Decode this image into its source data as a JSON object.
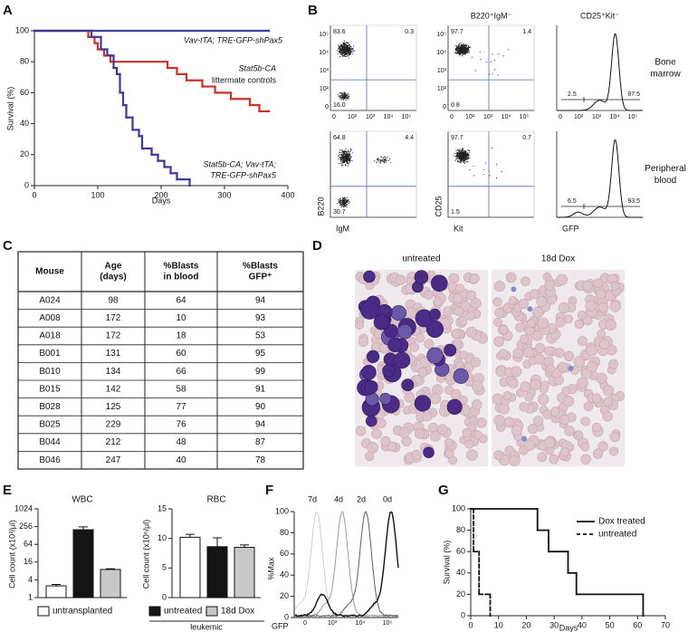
{
  "panel_letters": [
    "A",
    "B",
    "C",
    "D",
    "E",
    "F",
    "G"
  ],
  "chart_data": [
    {
      "type": "step",
      "xlabel": "Days",
      "ylabel": "Survival (%)",
      "xlim": [
        0,
        400
      ],
      "ylim": [
        0,
        100
      ],
      "xticks": [
        0,
        100,
        200,
        300,
        400
      ],
      "yticks": [
        0,
        20,
        40,
        60,
        80,
        100
      ],
      "series": [
        {
          "label_lines": [
            "Vav-tTA; TRE-GFP-shPax5"
          ],
          "color": "#3f3fa0",
          "x": [
            0,
            370
          ],
          "values": [
            100,
            100
          ]
        },
        {
          "label_lines": [
            "Stat5b-CA",
            "littermate controls"
          ],
          "color": "#c8322b",
          "x": [
            0,
            85,
            95,
            100,
            110,
            120,
            210,
            225,
            240,
            265,
            285,
            310,
            340,
            355,
            370
          ],
          "values": [
            100,
            96,
            92,
            88,
            84,
            80,
            76,
            72,
            68,
            64,
            60,
            56,
            52,
            48,
            48
          ]
        },
        {
          "label_lines": [
            "Stat5b-CA; Vav-tTA;",
            "TRE-GFP-shPax5"
          ],
          "color": "#3d3a91",
          "x": [
            0,
            90,
            105,
            115,
            125,
            130,
            135,
            140,
            145,
            155,
            165,
            170,
            185,
            195,
            205,
            215,
            225,
            245
          ],
          "values": [
            100,
            96,
            88,
            84,
            76,
            72,
            60,
            52,
            44,
            36,
            32,
            24,
            20,
            16,
            12,
            8,
            4,
            0
          ]
        }
      ]
    },
    {
      "type": "bar",
      "title": "WBC",
      "ylabel": "Cell count (x10³/μl)",
      "log_scale": true,
      "ylim": [
        1,
        1024
      ],
      "yticks": [
        1,
        4,
        16,
        64,
        256,
        1024
      ],
      "categories": [
        "untransplanted",
        "untreated",
        "18d Dox"
      ],
      "legend_group": "leukemic",
      "colors": [
        "#ffffff",
        "#141414",
        "#c8c8c8"
      ],
      "values": [
        2.5,
        200,
        9
      ],
      "errors": [
        0.3,
        50,
        0.5
      ]
    },
    {
      "type": "bar",
      "title": "RBC",
      "ylabel": "Cell count (x10⁶/μl)",
      "log_scale": false,
      "ylim": [
        0,
        15
      ],
      "yticks": [
        0,
        5,
        10,
        15
      ],
      "colors": [
        "#ffffff",
        "#141414",
        "#c8c8c8"
      ],
      "values": [
        10.2,
        8.6,
        8.5
      ],
      "errors": [
        0.5,
        1.5,
        0.4
      ]
    },
    {
      "type": "histogram-overlay",
      "xlabel": "GFP",
      "ylabel": "%Max",
      "ylim": [
        0,
        100
      ],
      "yticks": [
        0,
        20,
        40,
        60,
        80,
        100
      ],
      "x_tick_labels": [
        "0",
        "10³",
        "10⁴",
        "10⁵"
      ],
      "series": [
        {
          "name": "7d",
          "color": "#cfcfcf"
        },
        {
          "name": "4d",
          "color": "#9a9a9a"
        },
        {
          "name": "2d",
          "color": "#5e5e5e"
        },
        {
          "name": "0d",
          "color": "#111111"
        }
      ]
    },
    {
      "type": "step",
      "xlabel": "Days",
      "ylabel": "Survival (%)",
      "xlim": [
        0,
        70
      ],
      "ylim": [
        0,
        100
      ],
      "xticks": [
        0,
        10,
        20,
        30,
        40,
        50,
        60,
        70
      ],
      "yticks": [
        0,
        20,
        40,
        60,
        80,
        100
      ],
      "series": [
        {
          "name": "Dox treated",
          "color": "#111111",
          "dashed": false,
          "x": [
            0,
            24,
            28,
            35,
            38,
            62
          ],
          "values": [
            100,
            80,
            60,
            40,
            20,
            0
          ]
        },
        {
          "name": "untreated",
          "color": "#111111",
          "dashed": true,
          "x": [
            0,
            1,
            3,
            7
          ],
          "values": [
            100,
            60,
            20,
            0
          ]
        }
      ]
    }
  ],
  "flow_cytometry": {
    "column_headers": [
      "B220⁺IgM⁻",
      "CD25⁺Kit⁻"
    ],
    "log_tick_labels": [
      "0",
      "10²",
      "10³",
      "10⁴",
      "10⁵"
    ],
    "axis_labels": [
      [
        "B220",
        "IgM"
      ],
      [
        "CD25",
        "Kit"
      ],
      [
        "GFP"
      ]
    ],
    "rows": [
      {
        "label_lines": [
          "Bone",
          "marrow"
        ],
        "plots": [
          [
            "83.6",
            "0.3",
            "16.0"
          ],
          [
            "97.7",
            "1.4",
            "0.8"
          ],
          [
            "2.5",
            "97.5"
          ]
        ]
      },
      {
        "label_lines": [
          "Peripheral",
          "blood"
        ],
        "plots": [
          [
            "64.8",
            "4.4",
            "30.7"
          ],
          [
            "97.7",
            "0.7",
            "1.5"
          ],
          [
            "6.5",
            "93.5"
          ]
        ]
      }
    ]
  },
  "table": {
    "header": [
      [
        "Mouse"
      ],
      [
        "Age",
        "(days)"
      ],
      [
        "%Blasts",
        "in blood"
      ],
      [
        "%Blasts",
        "GFP⁺"
      ]
    ],
    "rows": [
      [
        "A024",
        98,
        64,
        94
      ],
      [
        "A008",
        172,
        10,
        93
      ],
      [
        "A018",
        172,
        18,
        53
      ],
      [
        "B001",
        131,
        60,
        95
      ],
      [
        "B010",
        134,
        66,
        99
      ],
      [
        "B015",
        142,
        58,
        91
      ],
      [
        "B028",
        125,
        77,
        90
      ],
      [
        "B025",
        229,
        76,
        94
      ],
      [
        "B044",
        212,
        48,
        87
      ],
      [
        "B046",
        247,
        40,
        78
      ]
    ]
  },
  "micrographs": {
    "labels": [
      "untreated",
      "18d Dox"
    ]
  }
}
